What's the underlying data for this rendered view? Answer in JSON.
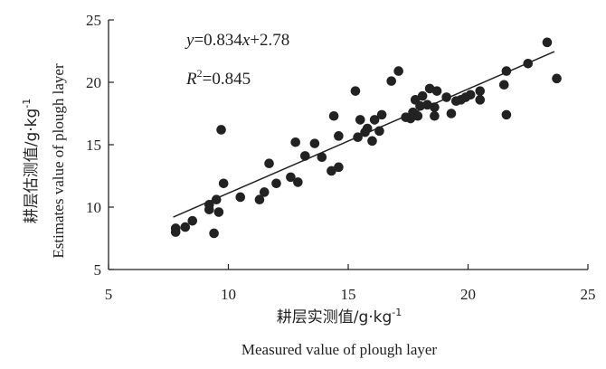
{
  "chart_data": {
    "type": "scatter",
    "title": "",
    "xlabel_cn": "耕层实测值/g·kg",
    "xlabel_cn_sup": "-1",
    "xlabel_en": "Measured value of plough layer",
    "ylabel_cn": "耕层估测值/g·kg",
    "ylabel_cn_sup": "-1",
    "ylabel_en": "Estimates value of plough layer",
    "xlim": [
      5,
      25
    ],
    "ylim": [
      5,
      25
    ],
    "xticks": [
      5,
      10,
      15,
      20,
      25
    ],
    "yticks": [
      5,
      10,
      15,
      20,
      25
    ],
    "grid": false,
    "marker_color": "#222222",
    "fit": {
      "slope": 0.834,
      "intercept": 2.78,
      "x_range": [
        7.7,
        23.6
      ],
      "eq_y": "y",
      "eq_rest": "=0.834",
      "eq_x": "x",
      "eq_tail": "+2.78",
      "r2_r": "R",
      "r2_sup": "2",
      "r2_val": "=0.845"
    },
    "points": [
      [
        7.8,
        8.0
      ],
      [
        7.8,
        8.3
      ],
      [
        8.2,
        8.4
      ],
      [
        8.5,
        8.9
      ],
      [
        9.2,
        9.8
      ],
      [
        9.2,
        10.2
      ],
      [
        9.4,
        7.9
      ],
      [
        9.5,
        10.6
      ],
      [
        9.6,
        9.6
      ],
      [
        9.7,
        16.2
      ],
      [
        9.8,
        11.9
      ],
      [
        10.5,
        10.8
      ],
      [
        11.3,
        10.6
      ],
      [
        11.5,
        11.2
      ],
      [
        11.7,
        13.5
      ],
      [
        12.0,
        11.9
      ],
      [
        12.6,
        12.4
      ],
      [
        12.8,
        15.2
      ],
      [
        12.9,
        12.0
      ],
      [
        13.2,
        14.1
      ],
      [
        13.6,
        15.1
      ],
      [
        13.9,
        14.0
      ],
      [
        14.3,
        12.9
      ],
      [
        14.4,
        17.3
      ],
      [
        14.6,
        13.2
      ],
      [
        14.6,
        15.7
      ],
      [
        15.3,
        19.3
      ],
      [
        15.4,
        15.6
      ],
      [
        15.5,
        17.0
      ],
      [
        15.7,
        16.0
      ],
      [
        15.8,
        16.3
      ],
      [
        16.0,
        15.3
      ],
      [
        16.1,
        17.0
      ],
      [
        16.3,
        16.1
      ],
      [
        16.4,
        17.4
      ],
      [
        16.8,
        20.1
      ],
      [
        17.1,
        20.9
      ],
      [
        17.4,
        17.2
      ],
      [
        17.6,
        17.1
      ],
      [
        17.7,
        17.6
      ],
      [
        17.8,
        18.6
      ],
      [
        17.9,
        17.3
      ],
      [
        18.0,
        18.1
      ],
      [
        18.1,
        18.9
      ],
      [
        18.3,
        18.2
      ],
      [
        18.4,
        19.5
      ],
      [
        18.6,
        17.3
      ],
      [
        18.6,
        18.0
      ],
      [
        18.7,
        19.3
      ],
      [
        19.1,
        18.8
      ],
      [
        19.3,
        17.5
      ],
      [
        19.5,
        18.5
      ],
      [
        19.7,
        18.6
      ],
      [
        19.9,
        18.8
      ],
      [
        20.1,
        19.0
      ],
      [
        20.5,
        19.3
      ],
      [
        20.5,
        18.6
      ],
      [
        21.5,
        19.8
      ],
      [
        21.6,
        20.9
      ],
      [
        21.6,
        17.4
      ],
      [
        22.5,
        21.5
      ],
      [
        23.3,
        23.2
      ],
      [
        23.7,
        20.3
      ]
    ]
  }
}
